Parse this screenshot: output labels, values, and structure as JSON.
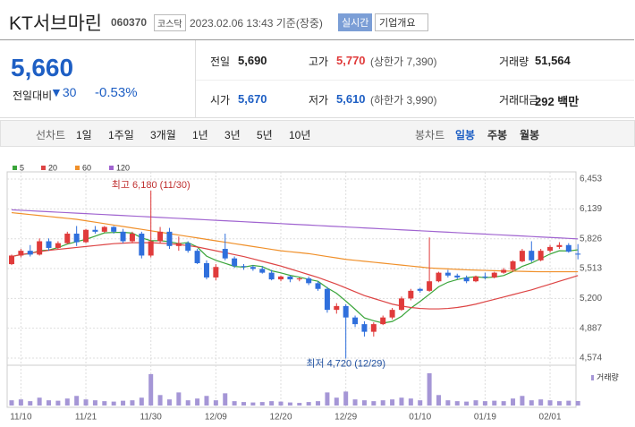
{
  "header": {
    "title": "KT서브마린",
    "code": "060370",
    "market": "코스닥",
    "datetime": "2023.02.06 13:43 기준(장중)",
    "realtime": "실시간",
    "company": "기업개요"
  },
  "quote": {
    "price": "5,660",
    "change_label": "전일대비",
    "change": "30",
    "change_rate": "-0.53%",
    "rows": [
      [
        {
          "label": "전일",
          "value": "5,690"
        },
        {
          "label": "고가",
          "value": "5,770",
          "extra": "(상한가 7,390)"
        },
        {
          "label": "거래량",
          "value": "51,564"
        }
      ],
      [
        {
          "label": "시가",
          "value": "5,670"
        },
        {
          "label": "저가",
          "value": "5,610",
          "extra": "(하한가 3,990)"
        },
        {
          "label": "거래대금",
          "value": "292 백만"
        }
      ]
    ]
  },
  "tabs": {
    "line_label": "선차트",
    "line": [
      "1일",
      "1주일",
      "3개월",
      "1년",
      "3년",
      "5년",
      "10년"
    ],
    "candle_label": "봉차트",
    "candle": [
      "일봉",
      "주봉",
      "월봉"
    ],
    "active": "일봉"
  },
  "chart_data": {
    "type": "candlestick",
    "categories": [
      null,
      "11/10",
      null,
      null,
      null,
      null,
      null,
      null,
      "11/21",
      null,
      null,
      null,
      null,
      null,
      null,
      "11/30",
      null,
      null,
      null,
      null,
      null,
      null,
      "12/09",
      null,
      null,
      null,
      null,
      null,
      null,
      "12/20",
      null,
      null,
      null,
      null,
      null,
      null,
      "12/29",
      null,
      null,
      null,
      null,
      null,
      null,
      null,
      "01/10",
      null,
      null,
      null,
      null,
      null,
      null,
      "01/19",
      null,
      null,
      null,
      null,
      null,
      null,
      "02/01",
      null,
      null,
      null
    ],
    "open": [
      5560,
      5650,
      5700,
      5660,
      5800,
      5730,
      5780,
      5880,
      5790,
      5920,
      5900,
      5950,
      5900,
      5800,
      5880,
      5650,
      5800,
      5900,
      5750,
      5780,
      5700,
      5570,
      5420,
      5720,
      5620,
      5540,
      5530,
      5510,
      5470,
      5400,
      5430,
      5400,
      5410,
      5360,
      5300,
      5080,
      5120,
      5000,
      4930,
      4850,
      4930,
      5000,
      5080,
      5200,
      5300,
      5280,
      5380,
      5470,
      5440,
      5420,
      5380,
      5430,
      5420,
      5470,
      5500,
      5590,
      5700,
      5600,
      5700,
      5740,
      5760,
      5670
    ],
    "high": [
      5660,
      5720,
      5760,
      5830,
      5830,
      5800,
      5900,
      5960,
      5930,
      5960,
      5960,
      5960,
      5930,
      5900,
      5900,
      6180,
      5950,
      5940,
      5850,
      5800,
      5720,
      5600,
      5560,
      5880,
      5640,
      5560,
      5550,
      5540,
      5500,
      5440,
      5440,
      5420,
      5430,
      5380,
      5320,
      5150,
      5140,
      5020,
      4960,
      4950,
      5020,
      5100,
      5220,
      5300,
      5310,
      5840,
      5480,
      5500,
      5460,
      5440,
      5440,
      5470,
      5480,
      5520,
      5600,
      5720,
      5800,
      5720,
      5760,
      5790,
      5780,
      5770
    ],
    "low": [
      5550,
      5630,
      5640,
      5650,
      5700,
      5720,
      5770,
      5750,
      5780,
      5880,
      5890,
      5880,
      5780,
      5780,
      5620,
      5630,
      5780,
      5720,
      5700,
      5680,
      5560,
      5400,
      5390,
      5600,
      5520,
      5500,
      5490,
      5460,
      5390,
      5380,
      5370,
      5380,
      5340,
      5280,
      5050,
      5040,
      4720,
      4900,
      4800,
      4800,
      4920,
      4980,
      5070,
      5180,
      5260,
      5270,
      5370,
      5420,
      5400,
      5360,
      5370,
      5400,
      5410,
      5460,
      5480,
      5580,
      5580,
      5590,
      5680,
      5720,
      5680,
      5610
    ],
    "close": [
      5650,
      5700,
      5660,
      5800,
      5730,
      5780,
      5880,
      5790,
      5920,
      5900,
      5950,
      5900,
      5800,
      5880,
      5650,
      5800,
      5900,
      5750,
      5780,
      5700,
      5570,
      5420,
      5530,
      5620,
      5540,
      5530,
      5510,
      5470,
      5400,
      5430,
      5400,
      5410,
      5360,
      5300,
      5080,
      5120,
      5000,
      4930,
      4850,
      4930,
      5000,
      5080,
      5200,
      5280,
      5280,
      5380,
      5470,
      5440,
      5420,
      5380,
      5430,
      5420,
      5470,
      5500,
      5590,
      5700,
      5600,
      5700,
      5740,
      5760,
      5690,
      5660
    ],
    "volume": [
      60000,
      70000,
      50000,
      90000,
      60000,
      55000,
      80000,
      110000,
      70000,
      60000,
      50000,
      45000,
      55000,
      60000,
      90000,
      360000,
      120000,
      70000,
      150000,
      60000,
      80000,
      110000,
      60000,
      140000,
      50000,
      40000,
      35000,
      40000,
      50000,
      45000,
      35000,
      30000,
      40000,
      50000,
      150000,
      90000,
      160000,
      70000,
      60000,
      50000,
      60000,
      70000,
      90000,
      80000,
      60000,
      370000,
      120000,
      60000,
      50000,
      45000,
      60000,
      50000,
      55000,
      50000,
      80000,
      110000,
      60000,
      70000,
      60000,
      50000,
      55000,
      51564
    ],
    "volume_label": "거래량",
    "volume_color": "#a596d6",
    "vlim": [
      0,
      400000
    ],
    "up_color": "#e03b3b",
    "down_color": "#2f6fdc",
    "series": [
      {
        "name": "5",
        "color": "#3aa53a",
        "values": [
          5640,
          5660,
          5670,
          5700,
          5708,
          5734,
          5770,
          5796,
          5820,
          5854,
          5888,
          5892,
          5894,
          5886,
          5836,
          5806,
          5806,
          5796,
          5776,
          5786,
          5740,
          5644,
          5600,
          5568,
          5536,
          5528,
          5546,
          5534,
          5490,
          5468,
          5442,
          5424,
          5400,
          5380,
          5310,
          5254,
          5172,
          5086,
          4996,
          4966,
          4942,
          4958,
          5012,
          5098,
          5168,
          5244,
          5322,
          5370,
          5398,
          5418,
          5428,
          5418,
          5424,
          5440,
          5482,
          5536,
          5572,
          5618,
          5666,
          5700,
          5698,
          5710
        ]
      },
      {
        "name": "20",
        "color": "#dd4444",
        "values": [
          5640,
          5660,
          5675,
          5690,
          5705,
          5715,
          5725,
          5735,
          5745,
          5755,
          5765,
          5775,
          5780,
          5785,
          5785,
          5785,
          5780,
          5775,
          5765,
          5755,
          5740,
          5720,
          5700,
          5680,
          5660,
          5640,
          5615,
          5590,
          5565,
          5540,
          5510,
          5480,
          5450,
          5420,
          5385,
          5350,
          5310,
          5270,
          5230,
          5200,
          5170,
          5140,
          5120,
          5105,
          5095,
          5090,
          5090,
          5095,
          5105,
          5120,
          5140,
          5165,
          5190,
          5215,
          5240,
          5265,
          5290,
          5320,
          5350,
          5380,
          5410,
          5440
        ]
      },
      {
        "name": "60",
        "color": "#f0902a",
        "values": [
          6100,
          6090,
          6080,
          6070,
          6060,
          6050,
          6040,
          6030,
          6015,
          6000,
          5985,
          5970,
          5955,
          5940,
          5925,
          5910,
          5895,
          5880,
          5865,
          5850,
          5835,
          5820,
          5805,
          5790,
          5775,
          5760,
          5745,
          5730,
          5715,
          5700,
          5690,
          5680,
          5670,
          5655,
          5640,
          5625,
          5610,
          5600,
          5590,
          5580,
          5570,
          5560,
          5550,
          5540,
          5530,
          5520,
          5515,
          5510,
          5505,
          5500,
          5497,
          5494,
          5491,
          5488,
          5486,
          5484,
          5482,
          5480,
          5480,
          5480,
          5480,
          5480
        ]
      },
      {
        "name": "120",
        "color": "#a064d0",
        "values": [
          6130,
          6125,
          6120,
          6115,
          6110,
          6105,
          6100,
          6095,
          6090,
          6085,
          6080,
          6075,
          6070,
          6065,
          6060,
          6055,
          6050,
          6045,
          6040,
          6035,
          6030,
          6025,
          6020,
          6015,
          6010,
          6005,
          6000,
          5995,
          5990,
          5985,
          5980,
          5975,
          5970,
          5965,
          5960,
          5955,
          5950,
          5945,
          5940,
          5935,
          5930,
          5925,
          5920,
          5915,
          5910,
          5905,
          5900,
          5895,
          5890,
          5885,
          5880,
          5875,
          5870,
          5865,
          5860,
          5855,
          5850,
          5845,
          5840,
          5835,
          5830,
          5825
        ]
      }
    ],
    "ylim": [
      4574,
      6453
    ],
    "yticks": [
      {
        "value": 6453,
        "label": "6,453"
      },
      {
        "value": 6139,
        "label": "6,139"
      },
      {
        "value": 5826,
        "label": "5,826"
      },
      {
        "value": 5513,
        "label": "5,513"
      },
      {
        "value": 5200,
        "label": "5,200"
      },
      {
        "value": 4887,
        "label": "4,887"
      },
      {
        "value": 4574,
        "label": "4,574"
      }
    ],
    "grid": true,
    "annotations": [
      {
        "text": "최고 6,180 (11/30)",
        "index": 15,
        "at": "high"
      },
      {
        "text": "최저 4,720 (12/29)",
        "index": 36,
        "at": "low"
      }
    ]
  }
}
